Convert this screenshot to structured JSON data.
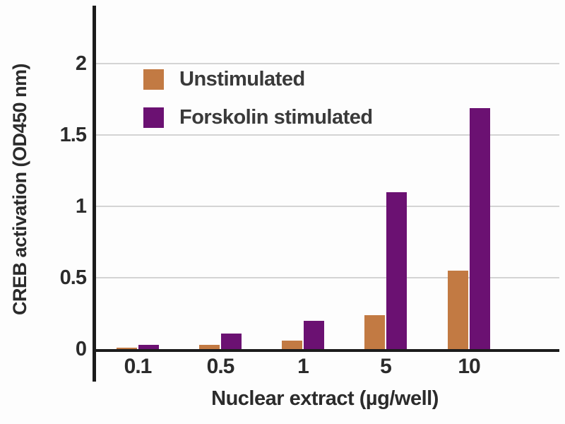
{
  "chart_data": {
    "type": "bar",
    "title": "",
    "categories": [
      "0.1",
      "0.5",
      "1",
      "5",
      "10"
    ],
    "series": [
      {
        "name": "Unstimulated",
        "color": "#c27a43",
        "values": [
          0.01,
          0.03,
          0.06,
          0.24,
          0.55
        ]
      },
      {
        "name": "Forskolin stimulated",
        "color": "#6b1172",
        "values": [
          0.03,
          0.11,
          0.2,
          1.1,
          1.69
        ]
      }
    ],
    "xlabel": "Nuclear extract (µg/well)",
    "ylabel": "CREB activation (OD450 nm)",
    "ylim": [
      0,
      2.2
    ],
    "yticks": [
      0,
      0.5,
      1,
      1.5,
      2
    ],
    "ytick_labels": [
      "0",
      "0.5",
      "1",
      "1.5",
      "2"
    ],
    "grid": "horizontal",
    "legend_position": "inside-top-left",
    "axis_color": "#1c1c1c",
    "gridline_color": "#d4d4d4"
  }
}
